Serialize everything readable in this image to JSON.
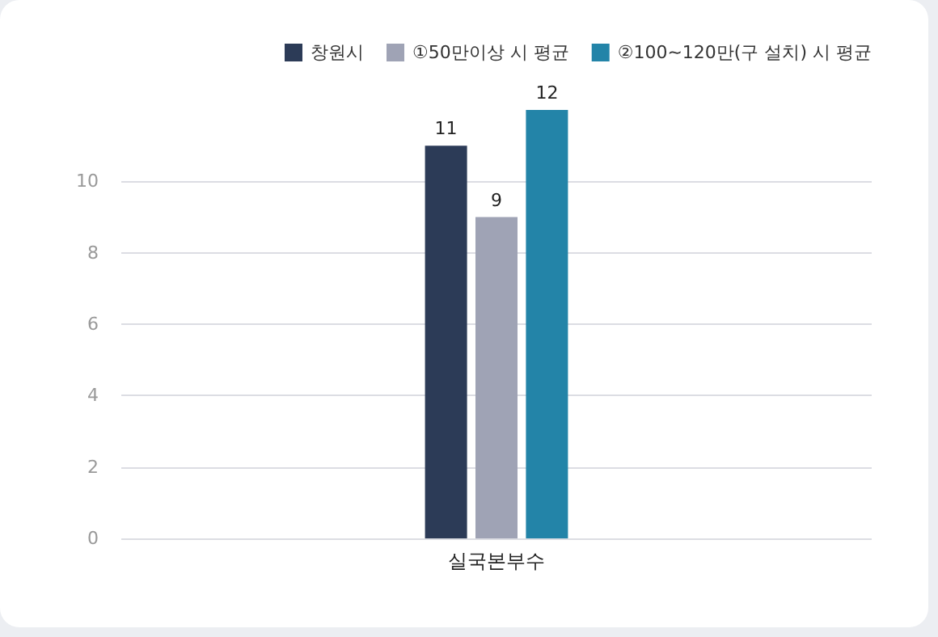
{
  "chart_data": {
    "type": "bar",
    "categories": [
      "실국본부수"
    ],
    "series": [
      {
        "name": "창원시",
        "color": "#2c3b57",
        "values": [
          11
        ]
      },
      {
        "name": "①50만이상 시 평균",
        "color": "#9fa3b5",
        "values": [
          9
        ]
      },
      {
        "name": "②100~120만(구 설치) 시 평균",
        "color": "#2384a8",
        "values": [
          12
        ]
      }
    ],
    "ylim": [
      0,
      12
    ],
    "yticks": [
      0,
      2,
      4,
      6,
      8,
      10
    ],
    "grid": "y",
    "legend": "top right",
    "data_labels": true
  }
}
